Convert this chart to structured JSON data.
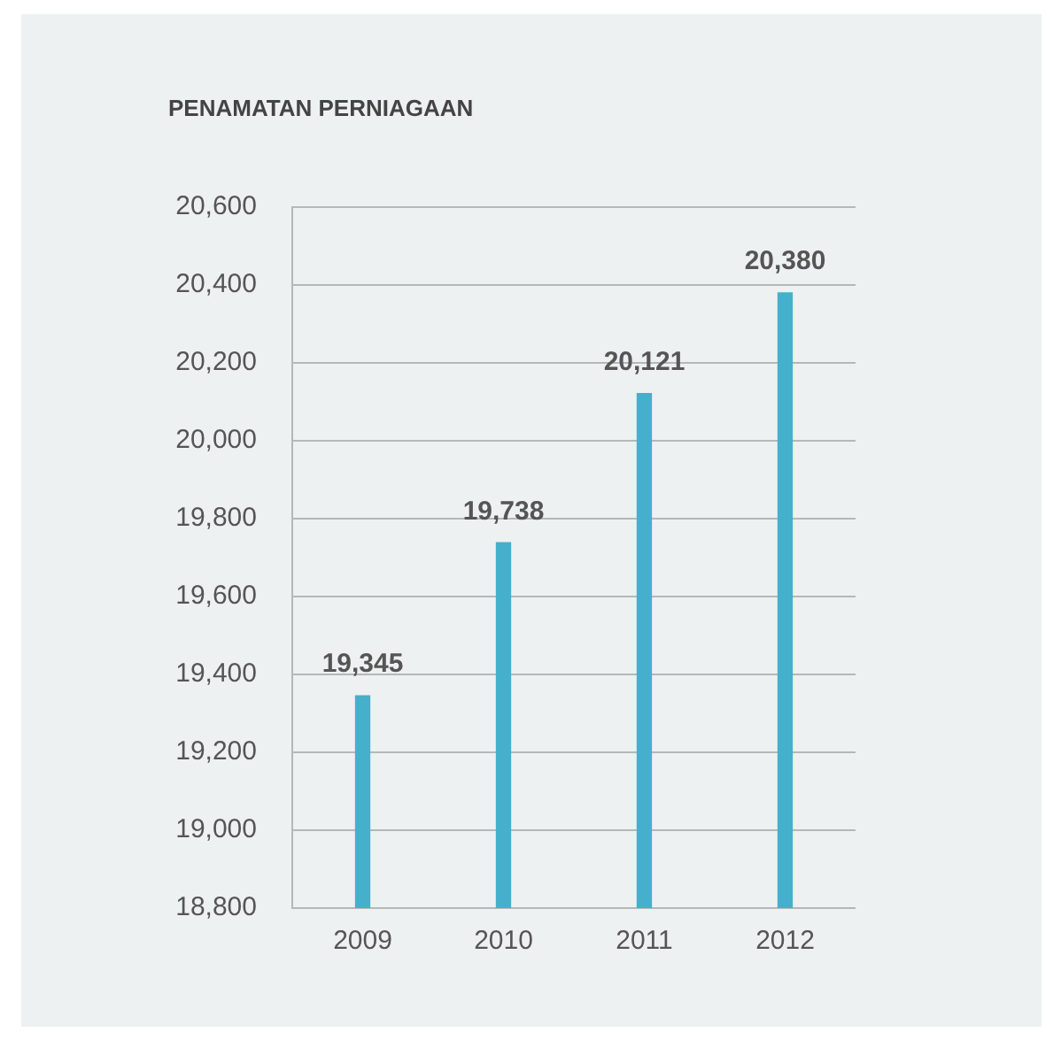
{
  "chart_data": {
    "type": "bar",
    "title": "PENAMATAN PERNIAGAAN",
    "categories": [
      "2009",
      "2010",
      "2011",
      "2012"
    ],
    "values": [
      19345,
      19738,
      20121,
      20380
    ],
    "color": "#45b0cc",
    "ylim": [
      18800,
      20600
    ],
    "yticks": [
      {
        "value": 18800,
        "label": "18,800"
      },
      {
        "value": 19000,
        "label": "19,000"
      },
      {
        "value": 19200,
        "label": "19,200"
      },
      {
        "value": 19400,
        "label": "19,400"
      },
      {
        "value": 19600,
        "label": "19,600"
      },
      {
        "value": 19800,
        "label": "19,800"
      },
      {
        "value": 20000,
        "label": "20,000"
      },
      {
        "value": 20200,
        "label": "20,200"
      },
      {
        "value": 20400,
        "label": "20,400"
      },
      {
        "value": 20600,
        "label": "20,600"
      }
    ],
    "grid": "y",
    "value_labels": [
      "19,345",
      "19,738",
      "20,121",
      "20,380"
    ],
    "legend": false
  }
}
